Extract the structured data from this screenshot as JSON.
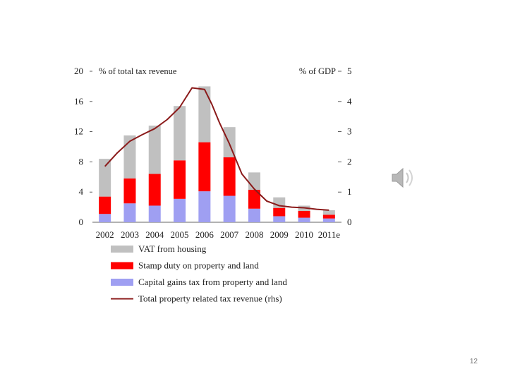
{
  "slide": {
    "page_number": "12"
  },
  "icons": {
    "speaker": "speaker-icon"
  },
  "chart_data": {
    "type": "bar",
    "stacked": true,
    "categories": [
      "2002",
      "2003",
      "2004",
      "2005",
      "2006",
      "2007",
      "2008",
      "2009",
      "2010",
      "2011e"
    ],
    "left_axis": {
      "title": "% of total tax revenue",
      "ylim": [
        0,
        20
      ],
      "ticks": [
        0,
        4,
        8,
        12,
        16,
        20
      ]
    },
    "right_axis": {
      "title": "% of GDP",
      "ylim": [
        0,
        5
      ],
      "ticks": [
        0,
        1,
        2,
        3,
        4,
        5
      ]
    },
    "series": [
      {
        "name": "Capital gains tax from property and land",
        "kind": "bar",
        "color": "#9f9ff2",
        "values": [
          1.1,
          2.5,
          2.2,
          3.1,
          4.1,
          3.5,
          1.8,
          0.8,
          0.6,
          0.5
        ]
      },
      {
        "name": "Stamp duty on property and land",
        "kind": "bar",
        "color": "#ff0000",
        "values": [
          2.3,
          3.3,
          4.2,
          5.1,
          6.5,
          5.1,
          2.5,
          1.1,
          0.9,
          0.5
        ]
      },
      {
        "name": "VAT from housing",
        "kind": "bar",
        "color": "#c0c0c0",
        "values": [
          5.0,
          5.7,
          6.4,
          7.2,
          7.4,
          4.0,
          2.3,
          1.4,
          0.7,
          0.6
        ]
      },
      {
        "name": "Total property related tax revenue (rhs)",
        "kind": "line",
        "axis": "right",
        "color": "#8b1a1a",
        "x": [
          0,
          0.5,
          1,
          1.5,
          2,
          2.5,
          3,
          3.5,
          4,
          4.3,
          4.6,
          5,
          5.5,
          6,
          6.5,
          7,
          7.5,
          8,
          8.5,
          9
        ],
        "values": [
          1.85,
          2.3,
          2.68,
          2.9,
          3.1,
          3.4,
          3.8,
          4.45,
          4.4,
          3.9,
          3.3,
          2.6,
          1.6,
          1.1,
          0.7,
          0.55,
          0.5,
          0.48,
          0.43,
          0.4
        ]
      }
    ],
    "legend_order": [
      2,
      1,
      0,
      3
    ],
    "legend_placement": "bottom",
    "grid": false
  }
}
